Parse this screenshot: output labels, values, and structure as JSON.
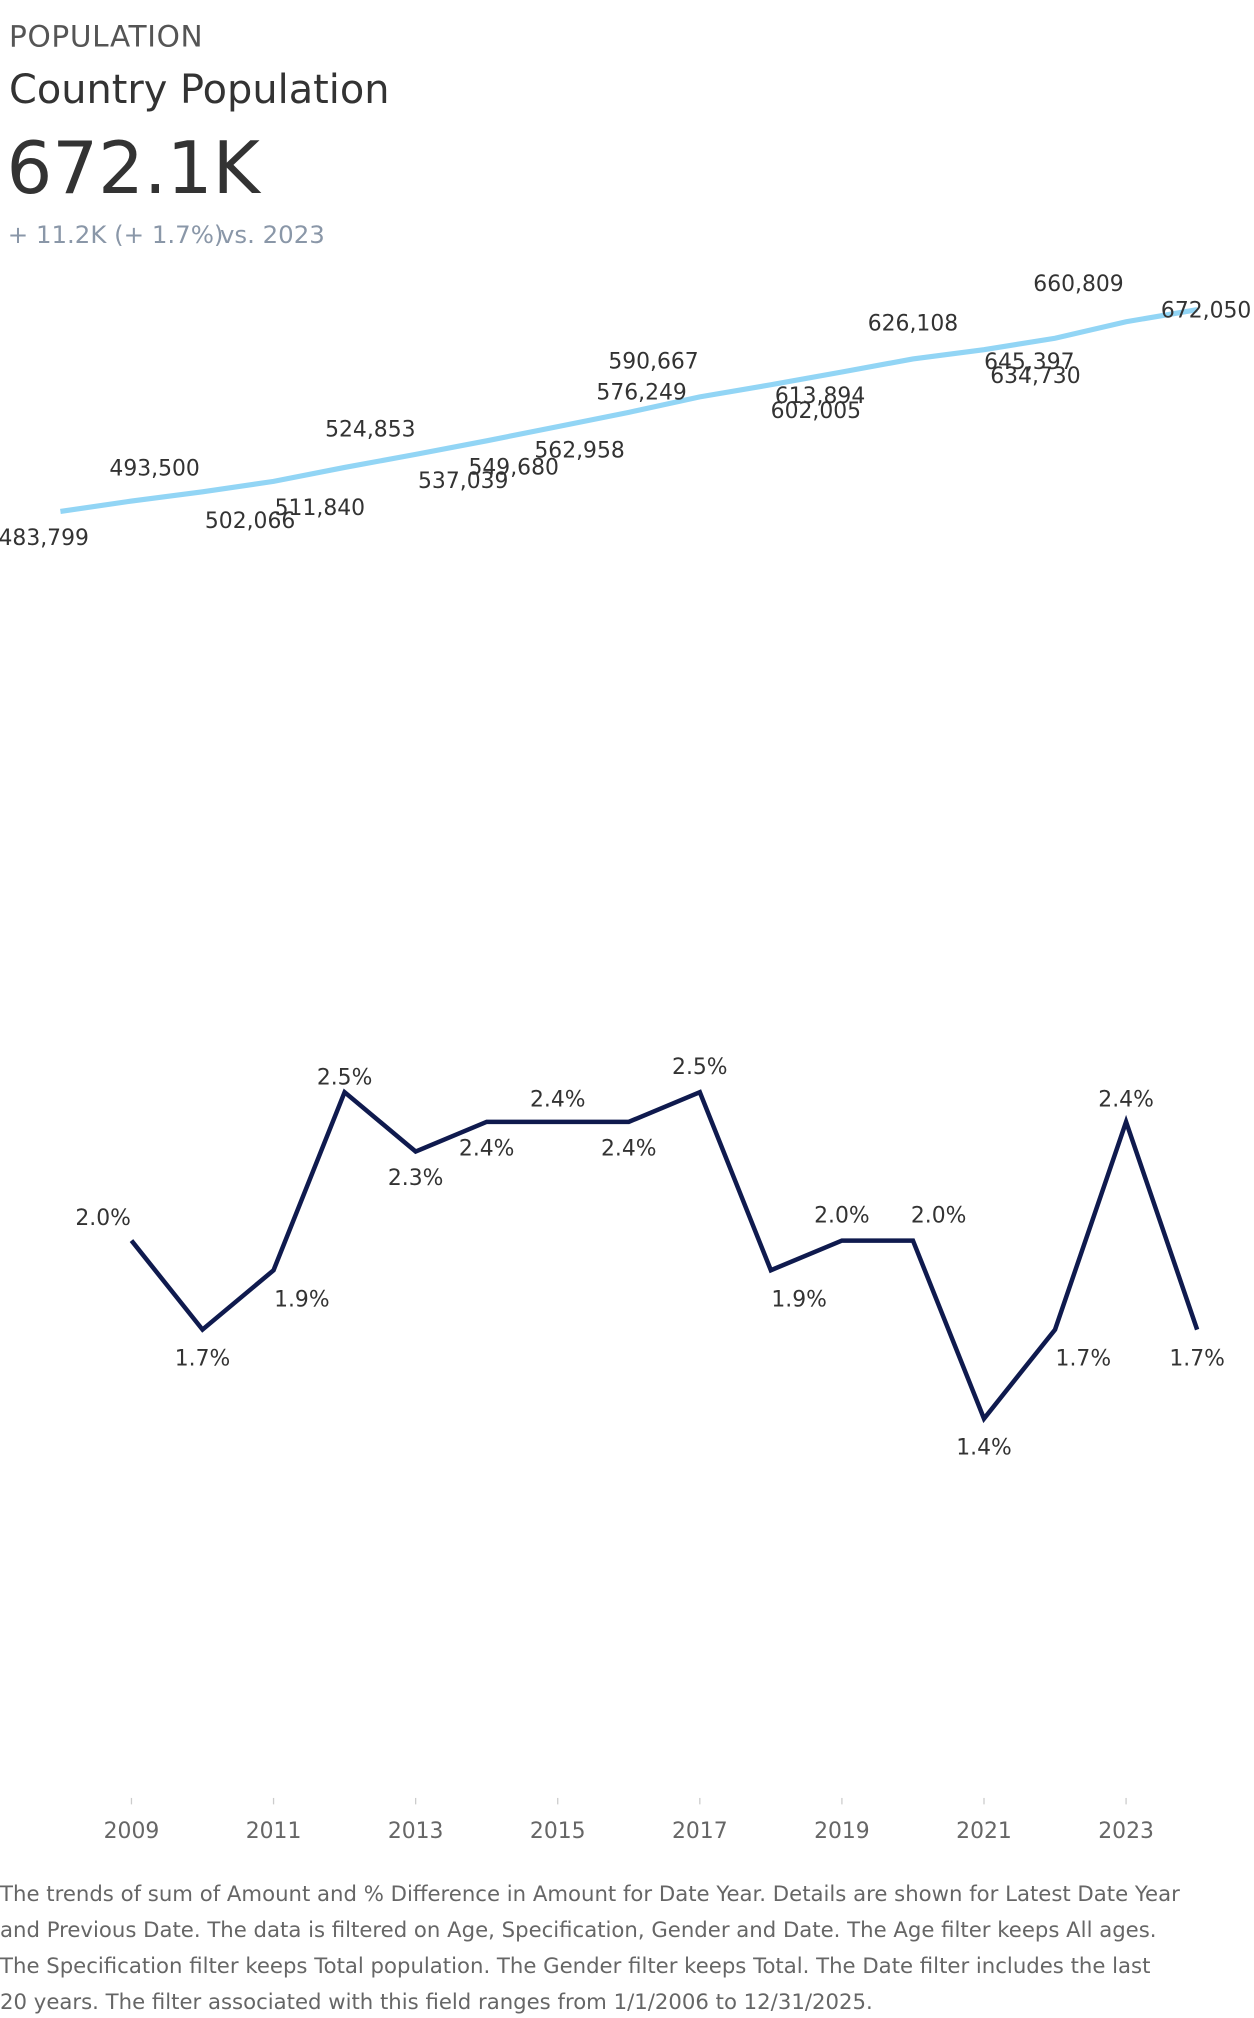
{
  "header": {
    "kicker": "POPULATION",
    "title": "Country Population",
    "kpi": "672.1K",
    "change": "+ 11.2K (+ 1.7%)",
    "comparison": "vs. 2023"
  },
  "chart_data": [
    {
      "type": "line",
      "x": [
        2008,
        2009,
        2010,
        2011,
        2012,
        2013,
        2014,
        2015,
        2016,
        2017,
        2018,
        2019,
        2020,
        2021,
        2022,
        2023,
        2024
      ],
      "xlim": [
        2007.15,
        2024.8
      ],
      "ylim": [
        421000,
        709000
      ],
      "series": [
        {
          "color": "#92d5f5",
          "values": [
            483799,
            493500,
            502066,
            511840,
            524853,
            537039,
            549680,
            562958,
            576249,
            590667,
            602005,
            613894,
            626108,
            634730,
            645397,
            660809,
            672050
          ],
          "value_labels": [
            "483,799",
            "493,500",
            "502,066",
            "511,840",
            "524,853",
            "537,039",
            "549,680",
            "562,958",
            "576,249",
            "590,667",
            "602,005",
            "613,894",
            "626,108",
            "634,730",
            "645,397",
            "660,809",
            "672,050"
          ]
        }
      ]
    },
    {
      "type": "line",
      "x": [
        2008,
        2009,
        2010,
        2011,
        2012,
        2013,
        2014,
        2015,
        2016,
        2017,
        2018,
        2019,
        2020,
        2021,
        2022,
        2023,
        2024
      ],
      "xlim": [
        2007.15,
        2024.8
      ],
      "ylim": [
        0.2,
        2.8
      ],
      "xticks": [
        2009,
        2011,
        2013,
        2015,
        2017,
        2019,
        2021,
        2023
      ],
      "series": [
        {
          "color": "#0f1a4e",
          "values": [
            null,
            2.0,
            1.7,
            1.9,
            2.5,
            2.3,
            2.4,
            2.4,
            2.4,
            2.5,
            1.9,
            2.0,
            2.0,
            1.4,
            1.7,
            2.4,
            1.7
          ],
          "value_labels": [
            null,
            "2.0%",
            "1.7%",
            "1.9%",
            "2.5%",
            "2.3%",
            "2.4%",
            "2.4%",
            "2.4%",
            "2.5%",
            "1.9%",
            "2.0%",
            "2.0%",
            "1.4%",
            "1.7%",
            "2.4%",
            "1.7%"
          ]
        }
      ]
    }
  ],
  "footnote": [
    "The trends of sum of Amount and % Difference in Amount for Date Year.  Details are shown for Latest Date Year",
    "and Previous Date. The data is filtered on Age, Specification, Gender and Date. The Age filter keeps All ages.",
    "The Specification filter keeps Total population. The Gender filter keeps Total. The Date filter includes the last",
    "20 years. The filter associated with this field ranges from 1/1/2006 to 12/31/2025."
  ]
}
